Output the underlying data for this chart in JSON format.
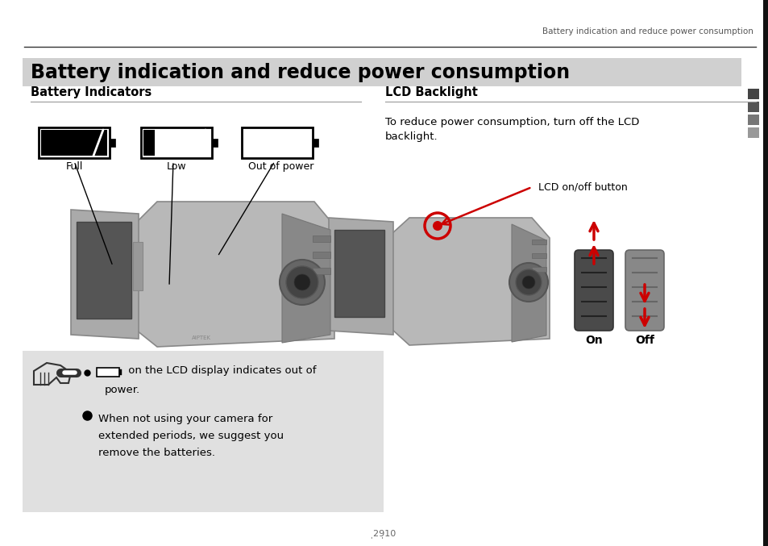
{
  "page_title": "Battery indication and reduce power consumption",
  "header_text": "Battery indication and reduce power consumption",
  "section1_title": "Battery Indicators",
  "section2_title": "LCD Backlight",
  "lcd_text_line1": "To reduce power consumption, turn off the LCD",
  "lcd_text_line2": "backlight.",
  "lcd_label": "LCD on/off button",
  "on_label": "On",
  "off_label": "Off",
  "battery_labels": [
    "Full",
    "Low",
    "Out of power"
  ],
  "note_text1a": " on the LCD display indicates out of",
  "note_text1b": "power.",
  "note_text2": "When not using your camera for\nextended periods, we suggest you\nremove the batteries.",
  "page_number": "̩29̩10",
  "bg_color": "#ffffff",
  "note_bg": "#e0e0e0",
  "title_bg": "#d0d0d0",
  "text_color": "#000000",
  "header_color": "#555555",
  "red_color": "#cc0000",
  "right_bar_colors": [
    "#444444",
    "#555555",
    "#777777",
    "#999999"
  ]
}
